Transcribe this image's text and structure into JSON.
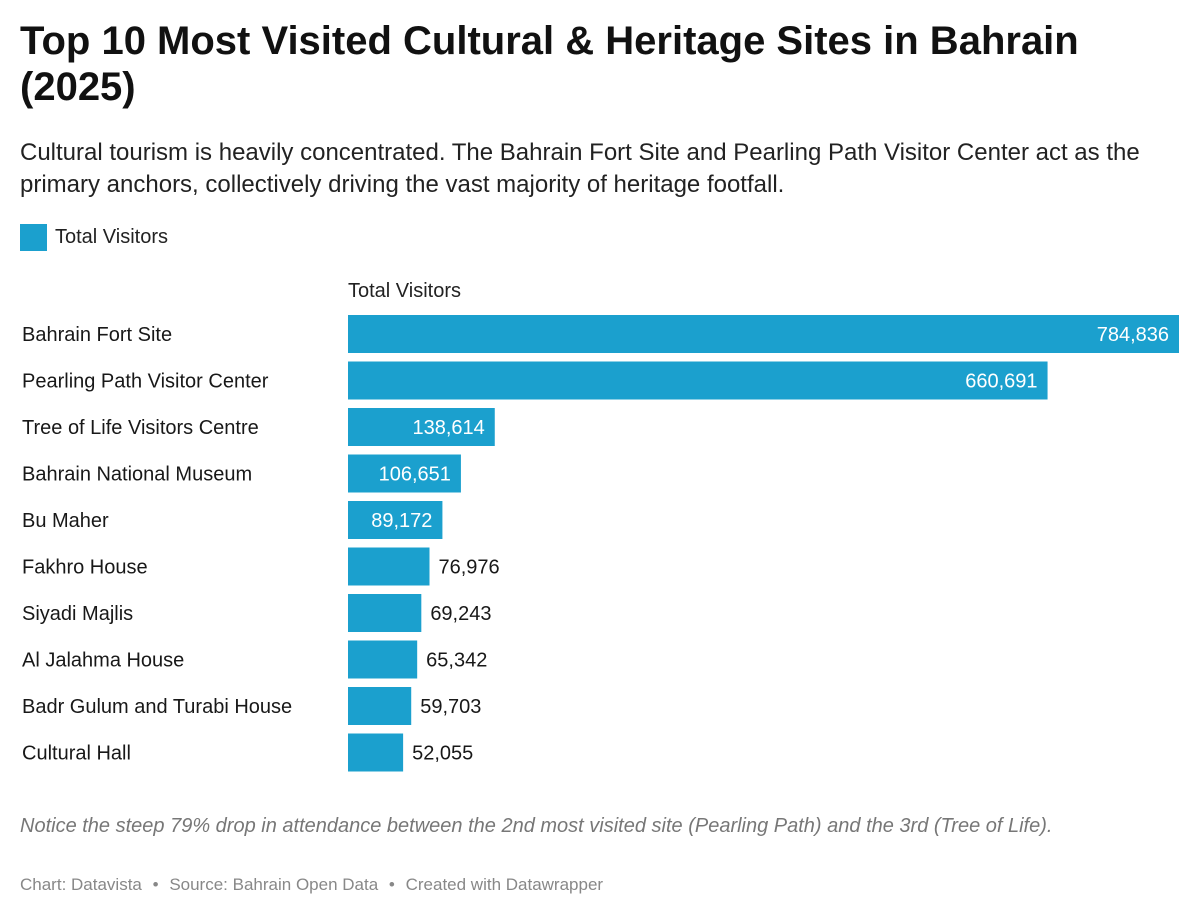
{
  "header": {
    "title": "Top 10 Most Visited Cultural & Heritage Sites in Bahrain (2025)",
    "subtitle": "Cultural tourism is heavily concentrated. The Bahrain Fort Site and Pearling Path Visitor Center act as the primary anchors, collectively driving the vast majority of heritage footfall."
  },
  "legend": {
    "label": "Total Visitors",
    "color": "#1ba0ce"
  },
  "chart_data": {
    "type": "bar",
    "orientation": "horizontal",
    "column_header": "Total Visitors",
    "categories": [
      "Bahrain Fort Site",
      "Pearling Path Visitor Center",
      "Tree of Life Visitors Centre",
      "Bahrain National Museum",
      "Bu Maher",
      "Fakhro House",
      "Siyadi Majlis",
      "Al Jalahma House",
      "Badr Gulum and Turabi House",
      "Cultural Hall"
    ],
    "series": [
      {
        "name": "Total Visitors",
        "color": "#1ba0ce",
        "values": [
          784836,
          660691,
          138614,
          106651,
          89172,
          76976,
          69243,
          65342,
          59703,
          52055
        ]
      }
    ],
    "labels": [
      "784,836",
      "660,691",
      "138,614",
      "106,651",
      "89,172",
      "76,976",
      "69,243",
      "65,342",
      "59,703",
      "52,055"
    ],
    "xlim": [
      0,
      784836
    ],
    "grid": false
  },
  "notes": {
    "annotation": "Notice the steep 79% drop in attendance between the 2nd most visited site (Pearling Path) and the 3rd (Tree of Life).",
    "credit": "Chart: Datavista",
    "source": "Source: Bahrain Open Data",
    "tool": "Created with Datawrapper",
    "separator": "•"
  }
}
